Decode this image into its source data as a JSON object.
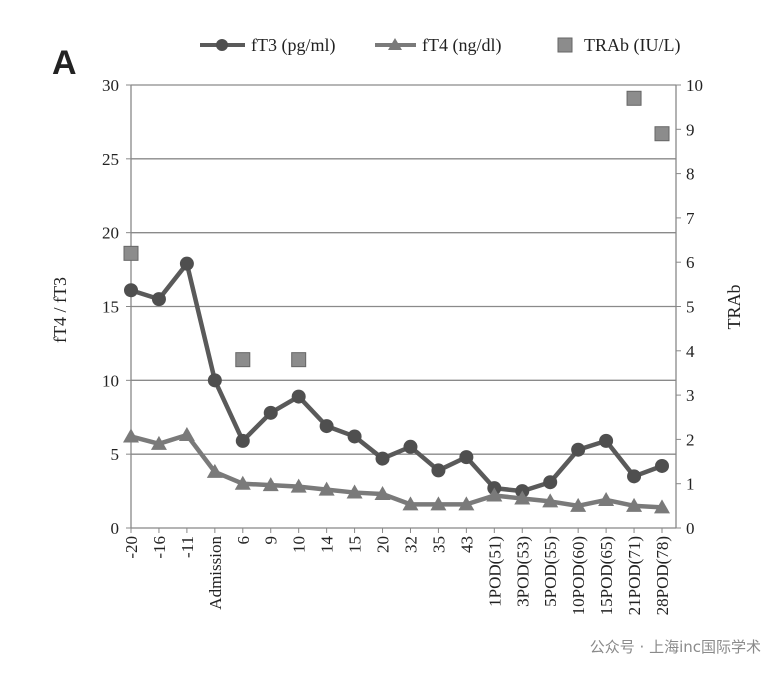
{
  "chart_data": {
    "type": "line",
    "panel_label": "A",
    "categories": [
      "-20",
      "-16",
      "-11",
      "Admission",
      "6",
      "9",
      "10",
      "14",
      "15",
      "20",
      "32",
      "35",
      "43",
      "1POD(51)",
      "3POD(53)",
      "5POD(55)",
      "10POD(60)",
      "15POD(65)",
      "21POD(71)",
      "28POD(78)"
    ],
    "series": [
      {
        "name": "fT3 (pg/ml)",
        "axis": "left",
        "marker": "circle",
        "color": "#5a5a5a",
        "values": [
          16.1,
          15.5,
          17.9,
          10.0,
          5.9,
          7.8,
          8.9,
          6.9,
          6.2,
          4.7,
          5.5,
          3.9,
          4.8,
          2.7,
          2.5,
          3.1,
          5.3,
          5.9,
          3.5,
          4.2
        ]
      },
      {
        "name": "fT4 (ng/dl)",
        "axis": "left",
        "marker": "triangle",
        "color": "#7a7a7a",
        "values": [
          6.2,
          5.7,
          6.3,
          3.8,
          3.0,
          2.9,
          2.8,
          2.6,
          2.4,
          2.3,
          1.6,
          1.6,
          1.6,
          2.2,
          2.0,
          1.8,
          1.5,
          1.9,
          1.5,
          1.4
        ]
      },
      {
        "name": "TRAb (IU/L)",
        "axis": "right",
        "marker": "square",
        "color": "#8c8c8c",
        "values": [
          6.2,
          null,
          null,
          null,
          3.8,
          null,
          3.8,
          null,
          null,
          null,
          null,
          null,
          null,
          null,
          null,
          null,
          null,
          null,
          9.7,
          8.9
        ]
      }
    ],
    "ylabel": "fT4 / fT3",
    "ylim": [
      0,
      30
    ],
    "yticks": [
      "0",
      "5",
      "10",
      "15",
      "20",
      "25",
      "30"
    ],
    "y2label": "TRAb",
    "y2lim": [
      0,
      10
    ],
    "y2ticks": [
      "0",
      "1",
      "2",
      "3",
      "4",
      "5",
      "6",
      "7",
      "8",
      "9",
      "10"
    ],
    "grid": true,
    "legend_position": "top"
  },
  "watermark": "公众号 · 上海inc国际学术"
}
